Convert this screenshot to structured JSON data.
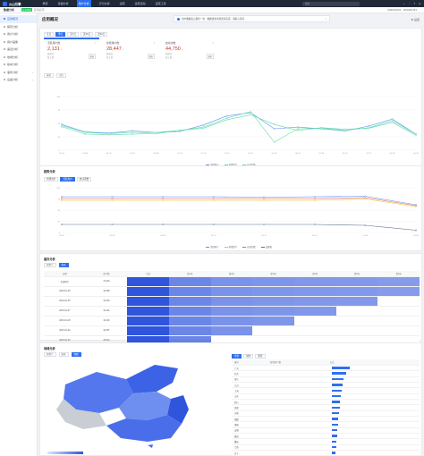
{
  "topbar": {
    "brand": "火山引擎",
    "nav": [
      "概览",
      "基础分析",
      "用户分析",
      "行为分析",
      "运营",
      "运营活动",
      "运营工具"
    ],
    "active_index": 2,
    "search_placeholder": "搜索",
    "icons": [
      "search-icon",
      "bell-icon",
      "help-icon",
      "user-icon"
    ]
  },
  "subbar": {
    "app": "数据分析",
    "env": "正式环境",
    "app_tag": "应用名称",
    "right": "2023/01/01 - 2023/01/31"
  },
  "sidebar": {
    "items": [
      {
        "label": "应用概况",
        "active": true
      },
      {
        "label": "留存分析",
        "active": false
      },
      {
        "label": "用户分析",
        "active": false
      },
      {
        "label": "用户画像",
        "active": false
      },
      {
        "label": "渠道分析",
        "active": false
      },
      {
        "label": "地域分析",
        "active": false
      },
      {
        "label": "版本分析",
        "active": false
      },
      {
        "label": "事件分析",
        "active": false,
        "expand": true
      },
      {
        "label": "设备分析",
        "active": false,
        "expand": true
      }
    ]
  },
  "page": {
    "title": "应用概况",
    "notice": "用户数据每日更新一次，数据更新可能会有延迟，请耐心等待",
    "settings": "设置"
  },
  "overview": {
    "tabs": [
      "今日",
      "昨日",
      "近7日",
      "近30日",
      "近90日"
    ],
    "active_tab": 1,
    "kpis": [
      {
        "name": "活跃用户数",
        "value": "2,131",
        "unit": "↓",
        "sub1": "较前日",
        "sub2": "较上周",
        "more": "更多",
        "color": "red"
      },
      {
        "name": "新增用户数",
        "value": "28,447",
        "unit": "↓",
        "sub1": "较前日",
        "sub2": "较上周",
        "more": "更多",
        "color": "red"
      },
      {
        "name": "启动次数",
        "value": "44,750",
        "unit": "↓",
        "sub1": "较前日",
        "sub2": "较上周",
        "more": "更多",
        "color": "red"
      }
    ],
    "chart_controls": {
      "granularity": "按天",
      "compare": "对比"
    },
    "legend": [
      "活跃用户",
      "新增用户",
      "启动次数"
    ]
  },
  "chart_data": [
    {
      "type": "line",
      "x": [
        "01-01",
        "01-03",
        "01-05",
        "01-07",
        "01-09",
        "01-11",
        "01-13",
        "01-15",
        "01-17",
        "01-19",
        "01-21",
        "01-23",
        "01-25",
        "01-27",
        "01-29",
        "01-31"
      ],
      "series": [
        {
          "name": "活跃用户",
          "color": "#5b8ff9",
          "values": [
            48,
            34,
            32,
            36,
            33,
            35,
            47,
            64,
            70,
            40,
            43,
            40,
            36,
            45,
            58,
            30
          ]
        },
        {
          "name": "新增用户",
          "color": "#5ad8a6",
          "values": [
            44,
            30,
            29,
            30,
            31,
            37,
            41,
            57,
            66,
            48,
            37,
            42,
            39,
            41,
            52,
            28
          ]
        },
        {
          "name": "启动次数",
          "color": "#61ddaa",
          "values": [
            46,
            33,
            31,
            33,
            33,
            37,
            43,
            60,
            72,
            15,
            40,
            41,
            37,
            42,
            55,
            30
          ]
        }
      ],
      "ylim": [
        0,
        100
      ]
    },
    {
      "type": "line",
      "x": [
        "01-01",
        "01-05",
        "01-09",
        "01-13",
        "01-17",
        "01-21",
        "01-25",
        "01-29"
      ],
      "series": [
        {
          "name": "活跃用户",
          "color": "#5b8ff9",
          "values": [
            80,
            80,
            80,
            80,
            79,
            80,
            81,
            62
          ]
        },
        {
          "name": "新增用户",
          "color": "#f6bd16",
          "values": [
            72,
            72,
            72,
            72,
            72,
            72,
            75,
            58
          ]
        },
        {
          "name": "启动次数",
          "color": "#e86452",
          "values": [
            76,
            76,
            76,
            76,
            76,
            76,
            78,
            60
          ]
        },
        {
          "name": "设备数",
          "color": "#5d7092",
          "values": [
            18,
            18,
            18,
            18,
            18,
            18,
            16,
            5
          ]
        }
      ],
      "ylim": [
        0,
        100
      ]
    }
  ],
  "trend": {
    "title": "趋势分析",
    "tabs": [
      "新增用户",
      "活跃用户",
      "启动次数"
    ],
    "active_tab": 1,
    "controls": [
      "按天",
      "对比"
    ],
    "legend": [
      "活跃用户",
      "新增用户",
      "启动次数",
      "设备数"
    ]
  },
  "retention": {
    "title": "留存分析",
    "controls": [
      "新用户",
      "按天"
    ],
    "headers": [
      "日期",
      "用户数",
      "当日",
      "第1天",
      "第2天",
      "第3天",
      "第4天",
      "第5天",
      "第6天"
    ],
    "rows": [
      {
        "date": "全部用户",
        "users": "72,446",
        "cells": [
          "",
          "",
          "",
          "",
          "",
          "",
          ""
        ]
      },
      {
        "date": "2023-01-25",
        "users": "10,286",
        "cells": [
          "",
          "",
          "",
          "",
          "",
          "",
          ""
        ]
      },
      {
        "date": "2023-01-26",
        "users": "10,332",
        "cells": [
          "",
          "",
          "",
          "",
          "",
          "",
          ""
        ]
      },
      {
        "date": "2023-01-27",
        "users": "10,431",
        "cells": [
          "",
          "",
          "",
          "",
          "",
          "",
          ""
        ]
      },
      {
        "date": "2023-01-28",
        "users": "10,416",
        "cells": [
          "",
          "",
          "",
          "",
          "",
          "",
          ""
        ]
      },
      {
        "date": "2023-01-29",
        "users": "10,367",
        "cells": [
          "",
          "",
          "",
          "",
          "",
          "",
          ""
        ]
      },
      {
        "date": "2023-01-30",
        "users": "10,614",
        "cells": [
          "",
          "",
          "",
          "",
          "",
          "",
          ""
        ]
      }
    ],
    "levels": [
      [
        1.0,
        0.55,
        0.45,
        0.42,
        0.4,
        0.38,
        0.35
      ],
      [
        1.0,
        0.55,
        0.45,
        0.42,
        0.4,
        0.38,
        0.35
      ],
      [
        1.0,
        0.55,
        0.45,
        0.42,
        0.4,
        0.38,
        0
      ],
      [
        1.0,
        0.55,
        0.45,
        0.42,
        0.4,
        0,
        0
      ],
      [
        1.0,
        0.55,
        0.45,
        0.42,
        0,
        0,
        0
      ],
      [
        1.0,
        0.55,
        0.45,
        0,
        0,
        0,
        0
      ],
      [
        1.0,
        0.55,
        0,
        0,
        0,
        0,
        0
      ]
    ]
  },
  "region": {
    "title": "地域分析",
    "controls": [
      "新用户",
      "按天",
      "地图"
    ],
    "table_tabs": [
      "省份",
      "城市",
      "国家"
    ],
    "table_headers": [
      "省份",
      "新增用户数",
      "占比"
    ],
    "rows": [
      {
        "name": "广东",
        "value": "",
        "pct": "",
        "ratio": 0.9
      },
      {
        "name": "北京",
        "value": "",
        "pct": "",
        "ratio": 0.75
      },
      {
        "name": "浙江",
        "value": "",
        "pct": "",
        "ratio": 0.6
      },
      {
        "name": "江苏",
        "value": "",
        "pct": "",
        "ratio": 0.55
      },
      {
        "name": "上海",
        "value": "",
        "pct": "",
        "ratio": 0.5
      },
      {
        "name": "山东",
        "value": "",
        "pct": "",
        "ratio": 0.45
      },
      {
        "name": "四川",
        "value": "",
        "pct": "",
        "ratio": 0.42
      },
      {
        "name": "湖北",
        "value": "",
        "pct": "",
        "ratio": 0.4
      },
      {
        "name": "河南",
        "value": "",
        "pct": "",
        "ratio": 0.37
      },
      {
        "name": "福建",
        "value": "",
        "pct": "",
        "ratio": 0.35
      },
      {
        "name": "湖南",
        "value": "",
        "pct": "",
        "ratio": 0.32
      },
      {
        "name": "安徽",
        "value": "",
        "pct": "",
        "ratio": 0.3
      },
      {
        "name": "陕西",
        "value": "",
        "pct": "",
        "ratio": 0.27
      },
      {
        "name": "重庆",
        "value": "",
        "pct": "",
        "ratio": 0.25
      },
      {
        "name": "江西",
        "value": "",
        "pct": "",
        "ratio": 0.22
      },
      {
        "name": "辽宁",
        "value": "",
        "pct": "",
        "ratio": 0.2
      }
    ]
  }
}
